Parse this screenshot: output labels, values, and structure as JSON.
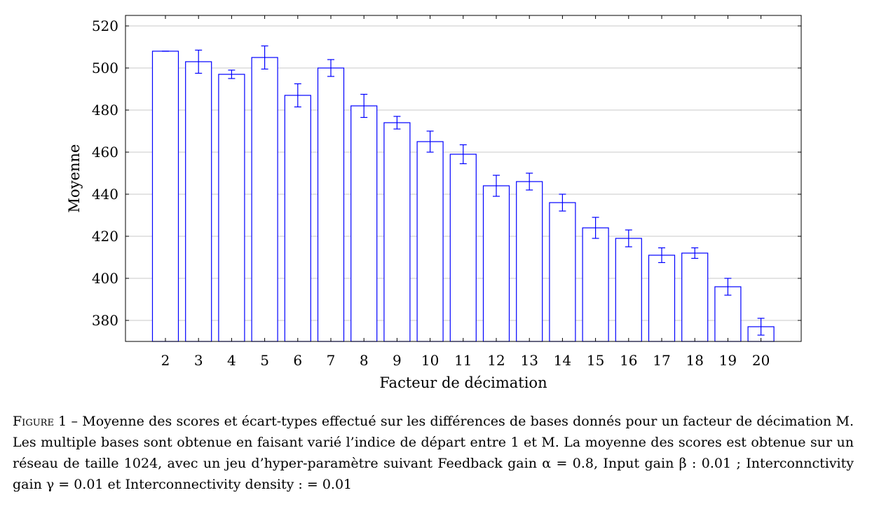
{
  "chart_data": {
    "type": "bar",
    "title": "",
    "xlabel": "Facteur de décimation",
    "ylabel": "Moyenne",
    "ylim": [
      370,
      525
    ],
    "yticks": [
      380,
      400,
      420,
      440,
      460,
      480,
      500,
      520
    ],
    "grid": "horizontal",
    "categories": [
      "2",
      "3",
      "4",
      "5",
      "6",
      "7",
      "8",
      "9",
      "10",
      "11",
      "12",
      "13",
      "14",
      "15",
      "16",
      "17",
      "18",
      "19",
      "20"
    ],
    "values": [
      508,
      503,
      497,
      505,
      487,
      500,
      482,
      474,
      465,
      459,
      444,
      446,
      436,
      424,
      419,
      411,
      412,
      396,
      377
    ],
    "errors": [
      0,
      5.5,
      2,
      5.5,
      5.5,
      4,
      5.5,
      3,
      5,
      4.5,
      5,
      4,
      4,
      5,
      4,
      3.5,
      2.5,
      4,
      4
    ],
    "bar_color": "#0000ff",
    "error_color": "#0000ff"
  },
  "caption": {
    "label": "Figure 1",
    "text": " – Moyenne des scores et écart-types effectué sur les différences de bases donnés pour un facteur de décimation M. Les multiple bases sont obtenue en faisant varié l’indice de départ entre 1 et M. La moyenne des scores est obtenue sur un réseau de taille 1024, avec un jeu d’hyper-paramètre suivant Feedback gain α = 0.8, Input gain β : 0.01 ; Interconnctivity gain γ = 0.01 et Interconnectivity density : = 0.01"
  }
}
